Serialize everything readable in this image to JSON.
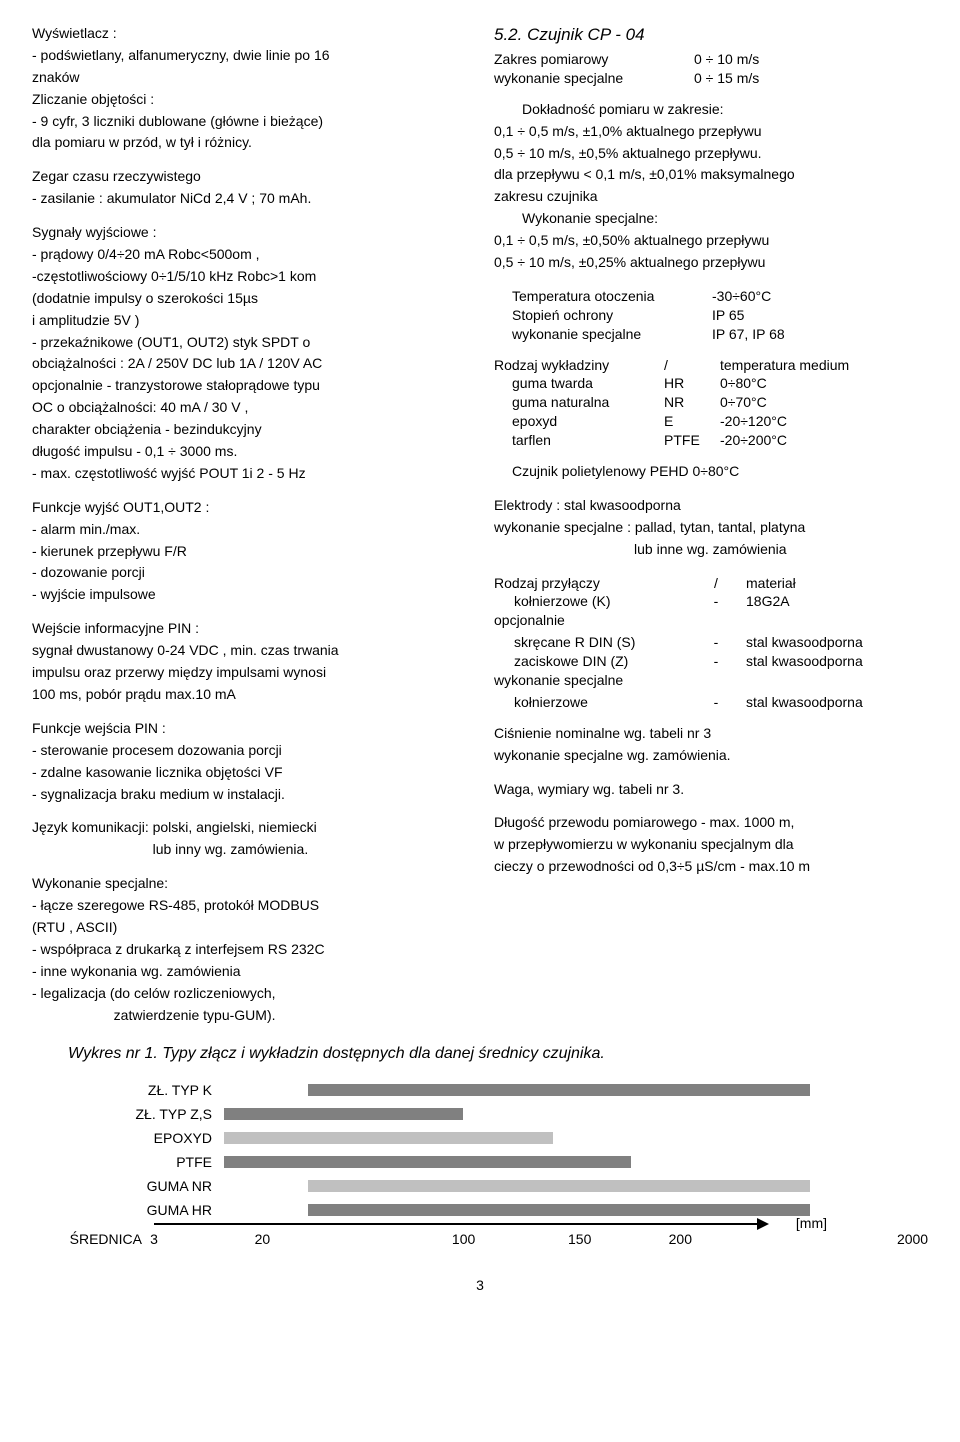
{
  "left": {
    "wyswietlacz_hdr": "Wyświetlacz :",
    "wyswietlacz_l1": "- podświetlany, alfanumeryczny, dwie linie po 16",
    "wyswietlacz_l2": "  znaków",
    "zliczanie_hdr": "Zliczanie objętości :",
    "zliczanie_l1": "- 9 cyfr, 3 liczniki dublowane  (główne i bieżące)",
    "zliczanie_l2": "  dla pomiaru w przód, w tył i różnicy.",
    "zegar_hdr": "Zegar czasu rzeczywistego",
    "zegar_l1": "- zasilanie : akumulator NiCd 2,4 V ; 70 mAh.",
    "sygnaly_hdr": "Sygnały wyjściowe :",
    "syg_l1": "- prądowy   0/4÷20 mA Robc<500om ,",
    "syg_l2": "-częstotliwościowy 0÷1/5/10 kHz  Robc>1 kom",
    "syg_l3": "  (dodatnie impulsy o szerokości 15µs",
    "syg_l4": "  i amplitudzie  5V )",
    "syg_l5": "- przekaźnikowe (OUT1, OUT2) styk SPDT o",
    "syg_l6": "  obciążalności : 2A / 250V DC lub 1A / 120V AC",
    "syg_l7": "  opcjonalnie - tranzystorowe stałoprądowe typu",
    "syg_l8": "  OC o obciążalności: 40 mA / 30 V ,",
    "syg_l9": "  charakter obciążenia - bezindukcyjny",
    "syg_l10": "  długość impulsu  -  0,1 ÷ 3000 ms.",
    "syg_l11": "- max. częstotliwość wyjść POUT 1i 2 - 5 Hz",
    "funkcje_out_hdr": "Funkcje wyjść OUT1,OUT2 :",
    "fo_l1": " - alarm min./max.",
    "fo_l2": " - kierunek przepływu F/R",
    "fo_l3": " - dozowanie porcji",
    "fo_l4": " - wyjście impulsowe",
    "wejscie_hdr": "Wejście informacyjne PIN :",
    "wi_l1": "sygnał dwustanowy  0-24 VDC , min. czas trwania",
    "wi_l2": "impulsu  oraz  przerwy  między impulsami  wynosi",
    "wi_l3": "100 ms, pobór prądu max.10 mA",
    "funkcje_in_hdr": "Funkcje wejścia PIN :",
    "fi_l1": " - sterowanie procesem dozowania porcji",
    "fi_l2": " - zdalne kasowanie licznika objętości VF",
    "fi_l3": " - sygnalizacja braku medium w instalacji.",
    "jezyk_l1": " Język komunikacji: polski, angielski, niemiecki",
    "jezyk_l2": "                               lub inny wg. zamówienia.",
    "wyk_hdr": "Wykonanie specjalne:",
    "wy_l1": "- łącze szeregowe RS-485, protokół MODBUS",
    "wy_l2": "  (RTU , ASCII)",
    "wy_l3": "- współpraca z drukarką z interfejsem RS 232C",
    "wy_l4": "- inne wykonania wg. zamówienia",
    "wy_l5": "- legalizacja   (do celów rozliczeniowych,",
    "wy_l6": "                     zatwierdzenie typu-GUM)."
  },
  "right": {
    "title": "5.2.  Czujnik  CP - 04",
    "zakres_k": "Zakres pomiarowy",
    "zakres_v": "0 ÷ 10 m/s",
    "wykspec_k": "wykonanie specjalne",
    "wykspec_v": "0 ÷ 15 m/s",
    "dok_hdr": "Dokładność pomiaru  w zakresie:",
    "dok_l1": "0,1 ÷ 0,5 m/s,  ±1,0% aktualnego przepływu",
    "dok_l2": "0,5 ÷ 10  m/s,  ±0,5% aktualnego przepływu.",
    "dok_l3": "dla przepływu < 0,1 m/s, ±0,01% maksymalnego",
    "dok_l4": "zakresu czujnika",
    "dok_ws": "Wykonanie specjalne:",
    "dok_l5": "0,1 ÷ 0,5 m/s,  ±0,50% aktualnego przepływu",
    "dok_l6": "0,5 ÷ 10  m/s,  ±0,25% aktualnego przepływu",
    "temp_k": "Temperatura otoczenia",
    "temp_v": "-30÷60°C",
    "stop_k": "Stopień ochrony",
    "stop_v": "IP 65",
    "stop_ws_k": "wykonanie specjalne",
    "stop_ws_v": "IP 67, IP 68",
    "rod_hdr_a": "Rodzaj wykładziny",
    "rod_hdr_b": "/",
    "rod_hdr_c": "temperatura medium",
    "r1a": "guma twarda",
    "r1b": "HR",
    "r1c": "0÷80°C",
    "r2a": "guma naturalna",
    "r2b": "NR",
    "r2c": "0÷70°C",
    "r3a": "epoxyd",
    "r3b": "E",
    "r3c": "-20÷120°C",
    "r4a": "tarflen",
    "r4b": "PTFE",
    "r4c": "-20÷200°C",
    "poliet": "Czujnik polietylenowy  PEHD  0÷80°C",
    "elek_l1": "Elektrody : stal kwasoodporna",
    "elek_l2": "wykonanie specjalne :  pallad, tytan, tantal, platyna",
    "elek_l3": "                                    lub inne wg. zamówienia",
    "przy_hdr_a": "Rodzaj przyłączy",
    "przy_hdr_b": "/",
    "przy_hdr_c": "materiał",
    "p1a": "kołnierzowe (K)",
    "p1b": "-",
    "p1c": "18G2A",
    "p_opc": "opcjonalnie",
    "p2a": "skręcane R DIN (S)",
    "p2b": "-",
    "p2c": "stal kwasoodporna",
    "p3a": "zaciskowe DIN (Z)",
    "p3b": "-",
    "p3c": "stal kwasoodporna",
    "p_ws": "wykonanie specjalne",
    "p4a": "kołnierzowe",
    "p4b": "-",
    "p4c": "stal kwasoodporna",
    "cisn_l1": "Ciśnienie nominalne   wg. tabeli nr 3",
    "cisn_l2": "wykonanie specjalne wg. zamówienia.",
    "waga": "Waga, wymiary wg. tabeli nr 3.",
    "dlug_l1": "Długość przewodu pomiarowego - max. 1000 m,",
    "dlug_l2": "w przepływomierzu w wykonaniu specjalnym dla",
    "dlug_l3": "cieczy o przewodności od 0,3÷5 µS/cm - max.10 m"
  },
  "chart": {
    "title": "Wykres nr 1.  Typy złącz i wykładzin dostępnych dla danej średnicy czujnika.",
    "axis_label": "ŚREDNICA",
    "unit": "[mm]",
    "x_ticks": [
      {
        "label": "3",
        "pct": 0
      },
      {
        "label": "20",
        "pct": 14
      },
      {
        "label": "100",
        "pct": 40
      },
      {
        "label": "150",
        "pct": 55
      },
      {
        "label": "200",
        "pct": 68
      },
      {
        "label": "2000",
        "pct": 98
      }
    ],
    "rows": [
      {
        "label": "ZŁ. TYP K",
        "start_pct": 14,
        "end_pct": 98,
        "color": "#808080"
      },
      {
        "label": "ZŁ. TYP Z,S",
        "start_pct": 0,
        "end_pct": 40,
        "color": "#808080"
      },
      {
        "label": "EPOXYD",
        "start_pct": 0,
        "end_pct": 55,
        "color": "#c0c0c0"
      },
      {
        "label": "PTFE",
        "start_pct": 0,
        "end_pct": 68,
        "color": "#808080"
      },
      {
        "label": "GUMA NR",
        "start_pct": 14,
        "end_pct": 98,
        "color": "#c0c0c0"
      },
      {
        "label": "GUMA HR",
        "start_pct": 14,
        "end_pct": 98,
        "color": "#808080"
      }
    ]
  },
  "page_num": "3"
}
